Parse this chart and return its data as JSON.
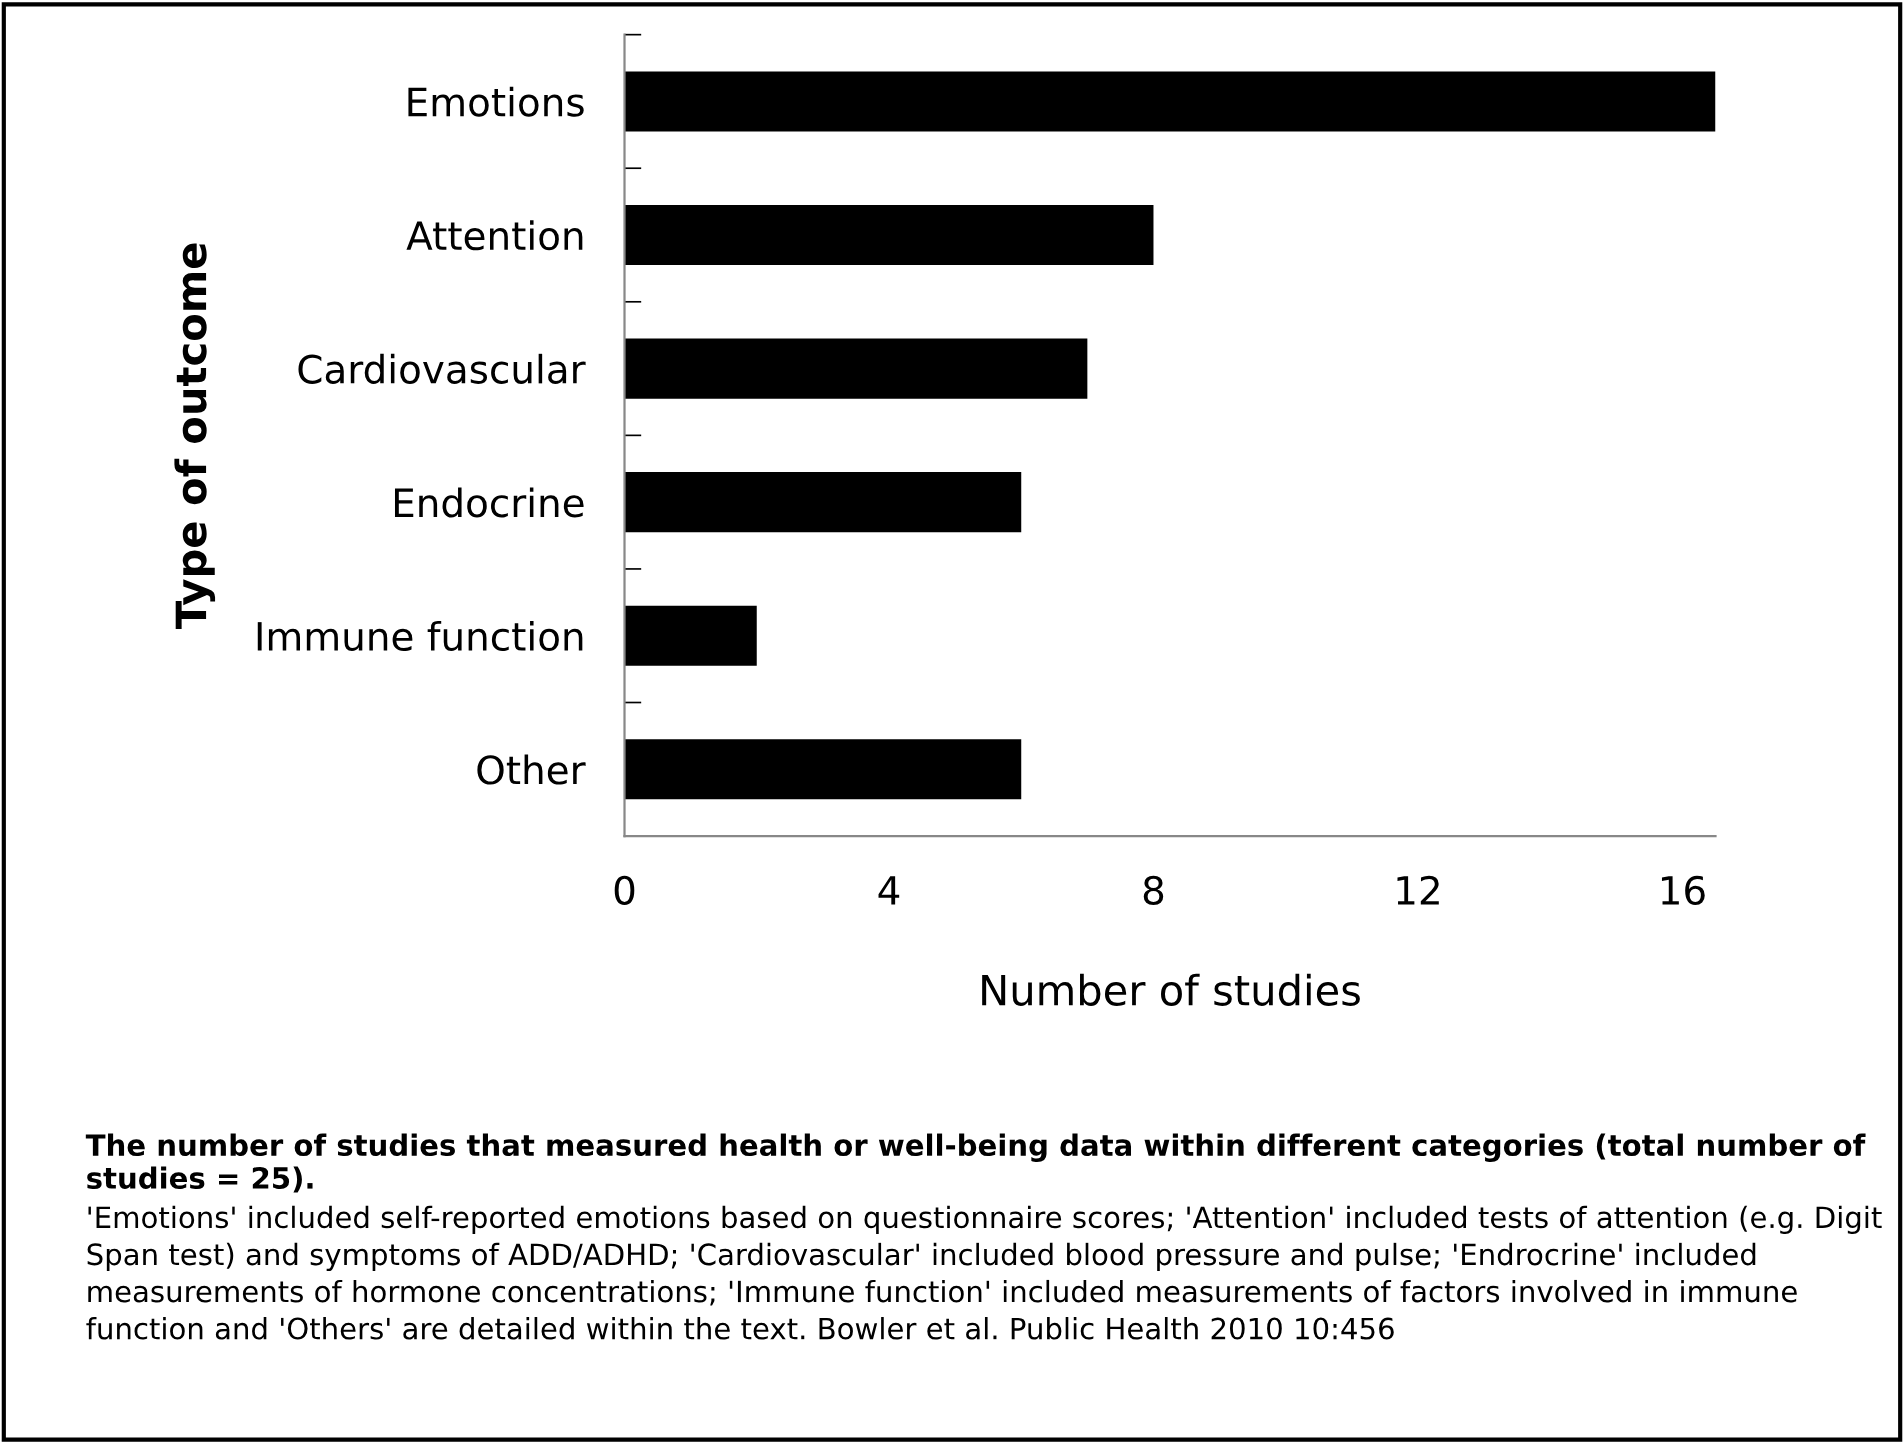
{
  "chart_data": {
    "type": "bar",
    "orientation": "horizontal",
    "categories": [
      "Emotions",
      "Attention",
      "Cardiovascular",
      "Endocrine",
      "Immune function",
      "Other"
    ],
    "values": [
      16.5,
      8,
      7,
      6,
      2,
      6
    ],
    "color": "#000000",
    "xlim": [
      0,
      16.5
    ],
    "xticks": [
      0,
      4,
      8,
      12,
      16
    ],
    "grid": false,
    "legend": false,
    "xlabel": "Number of studies",
    "ylabel": "Type of outcome",
    "annotations": [
      "The number of studies that measured health or well-being data within different categories (total number of studies = 25).",
      "'Emotions' included self-reported emotions based on questionnaire scores; 'Attention' included tests of attention (e.g. Digit Span test) and symptoms of ADD/ADHD; 'Cardiovascular' included blood pressure and pulse; 'Endrocrine' included measurements of hormone concentrations; 'Immune function' included measurements of factors involved in immune function and 'Others' are detailed within the text. Bowler et al. Public Health 2010 10:456"
    ]
  }
}
